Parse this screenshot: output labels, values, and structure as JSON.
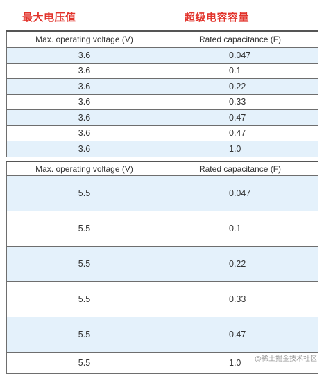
{
  "headings": {
    "left": "最大电压值",
    "right": "超级电容容量"
  },
  "table1": {
    "headers": [
      "Max. operating voltage (V)",
      "Rated capacitance (F)"
    ],
    "rows": [
      [
        "3.6",
        "0.047"
      ],
      [
        "3.6",
        "0.1"
      ],
      [
        "3.6",
        "0.22"
      ],
      [
        "3.6",
        "0.33"
      ],
      [
        "3.6",
        "0.47"
      ],
      [
        "3.6",
        "0.47"
      ],
      [
        "3.6",
        "1.0"
      ]
    ]
  },
  "table2": {
    "headers": [
      "Max. operating voltage (V)",
      "Rated capacitance (F)"
    ],
    "rows": [
      [
        "5.5",
        "0.047"
      ],
      [
        "5.5",
        "0.1"
      ],
      [
        "5.5",
        "0.22"
      ],
      [
        "5.5",
        "0.33"
      ],
      [
        "5.5",
        "0.47"
      ],
      [
        "5.5",
        "1.0"
      ]
    ]
  },
  "watermark": "@稀土掘金技术社区",
  "colors": {
    "heading": "#e2332b",
    "row_shade": "#e4f1fb",
    "border": "#6e6e6e"
  }
}
